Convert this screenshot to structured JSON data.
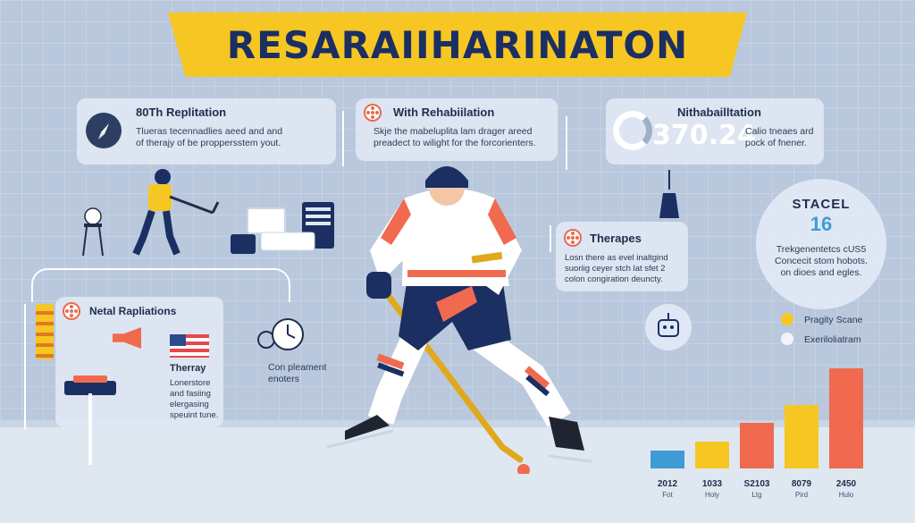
{
  "banner": {
    "title": "RESARAIIHARINATON"
  },
  "cards": {
    "replitation": {
      "title": "80Th Replitation",
      "text": [
        "Tlueras tecennadlies aeed and and",
        "of therajy of be proppersstem yout."
      ]
    },
    "rehabilation": {
      "title": "With Rehabiilation",
      "text": [
        "Skje the mabeluplita lam drager areed",
        "preadect to wilight for the forcorienters."
      ]
    },
    "nithabailtation": {
      "title": "Nithabailltation",
      "stat": "370.24",
      "text": [
        "Calio tneaes ard",
        "pock of fnener."
      ]
    },
    "stacel": {
      "title": "STACEL",
      "stat": "16",
      "text": [
        "Trekgenentetcs cUS5",
        "Concecit stom hobots.",
        "on dioes and egles."
      ]
    },
    "therapes": {
      "title": "Therapes",
      "text": [
        "Losn there as evel inaltgind",
        "suoriig ceyer stch lat sfet 2",
        "colon congiration deuncty."
      ]
    },
    "netal": {
      "title": "Netal Rapliations",
      "sub_title": "Therray",
      "text": [
        "Lonerstore",
        "and fasiing",
        "elergasing",
        "speuint tune."
      ]
    },
    "clock": {
      "text": [
        "Con pleament",
        "enoters"
      ]
    }
  },
  "legend": [
    {
      "label": "Pragity Scane",
      "color": "#f6c623"
    },
    {
      "label": "Exeriloliatram",
      "color": "#f2f4f8"
    }
  ],
  "chart_data": {
    "type": "bar",
    "categories": [
      "2012",
      "1033",
      "S2103",
      "8079",
      "2450"
    ],
    "category_sub": [
      "Fot",
      "Holy",
      "Ltg",
      "Pird",
      "Hulo"
    ],
    "series": [
      {
        "values": [
          2,
          3,
          5,
          7,
          11
        ],
        "colors": [
          "#3f9bd6",
          "#f6c623",
          "#f06a4f",
          "#f6c623",
          "#f06a4f"
        ]
      },
      {
        "values": [
          0,
          0,
          5,
          0,
          11
        ],
        "colors": [
          "#f2f4f8",
          "#f2f4f8",
          "#f06a4f",
          "#f2f4f8",
          "#f2f4f8"
        ]
      }
    ],
    "ylim": [
      0,
      13
    ]
  },
  "colors": {
    "accent": "#f6c623",
    "navy": "#1b2f63",
    "coral": "#f06a4f",
    "blue": "#3f9bd6"
  }
}
